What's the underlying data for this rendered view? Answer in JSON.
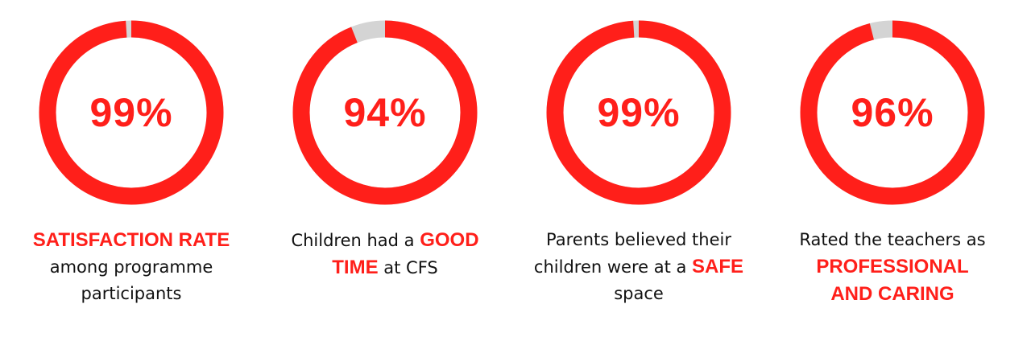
{
  "colors": {
    "accent": "#ff1f1a",
    "track": "#d4d4d4",
    "text": "#111111"
  },
  "chart_data": [
    {
      "type": "pie",
      "value": 99,
      "max": 100,
      "label": "99%",
      "caption": {
        "line1_highlight": "SATISFACTION RATE",
        "line2": "among programme",
        "line3": "participants"
      }
    },
    {
      "type": "pie",
      "value": 94,
      "max": 100,
      "label": "94%",
      "caption": {
        "line1_text": "Children had a ",
        "line1_highlight": "GOOD",
        "line2_highlight": "TIME",
        "line2_text": " at CFS"
      }
    },
    {
      "type": "pie",
      "value": 99,
      "max": 100,
      "label": "99%",
      "caption": {
        "line1": "Parents believed their",
        "line2_text": "children were at a ",
        "line2_highlight": "SAFE",
        "line3": "space"
      }
    },
    {
      "type": "pie",
      "value": 96,
      "max": 100,
      "label": "96%",
      "caption": {
        "line1": "Rated the teachers as",
        "line2_highlight": "PROFESSIONAL",
        "line3_highlight": "AND CARING"
      }
    }
  ]
}
